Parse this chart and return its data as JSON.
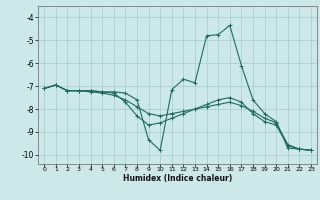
{
  "title": "",
  "xlabel": "Humidex (Indice chaleur)",
  "ylabel": "",
  "bg_color": "#cce8e8",
  "grid_color": "#aad0d0",
  "line_color": "#1e6b60",
  "xlim": [
    -0.5,
    23.5
  ],
  "ylim": [
    -10.4,
    -3.5
  ],
  "yticks": [
    -10,
    -9,
    -8,
    -7,
    -6,
    -5,
    -4
  ],
  "xticks": [
    0,
    1,
    2,
    3,
    4,
    5,
    6,
    7,
    8,
    9,
    10,
    11,
    12,
    13,
    14,
    15,
    16,
    17,
    18,
    19,
    20,
    21,
    22,
    23
  ],
  "series": [
    {
      "x": [
        0,
        1,
        2,
        3,
        4,
        5,
        6,
        7,
        8,
        9,
        10,
        11,
        12,
        13,
        14,
        15,
        16,
        17,
        18,
        19,
        20,
        21,
        22,
        23
      ],
      "y": [
        -7.1,
        -6.95,
        -7.2,
        -7.2,
        -7.2,
        -7.25,
        -7.25,
        -7.3,
        -7.6,
        -9.35,
        -9.8,
        -7.15,
        -6.7,
        -6.85,
        -4.8,
        -4.75,
        -4.35,
        -6.1,
        -7.6,
        -8.2,
        -8.55,
        -9.7,
        -9.75,
        -9.8
      ]
    },
    {
      "x": [
        0,
        1,
        2,
        3,
        4,
        5,
        6,
        7,
        8,
        9,
        10,
        11,
        12,
        13,
        14,
        15,
        16,
        17,
        18,
        19,
        20,
        21,
        22,
        23
      ],
      "y": [
        -7.1,
        -6.95,
        -7.2,
        -7.2,
        -7.2,
        -7.25,
        -7.3,
        -7.7,
        -8.3,
        -8.7,
        -8.6,
        -8.4,
        -8.2,
        -8.0,
        -7.8,
        -7.6,
        -7.5,
        -7.7,
        -8.2,
        -8.55,
        -8.7,
        -9.6,
        -9.75,
        -9.8
      ]
    },
    {
      "x": [
        0,
        1,
        2,
        3,
        4,
        5,
        6,
        7,
        8,
        9,
        10,
        11,
        12,
        13,
        14,
        15,
        16,
        17,
        18,
        19,
        20,
        21,
        22,
        23
      ],
      "y": [
        -7.1,
        -6.95,
        -7.2,
        -7.2,
        -7.25,
        -7.3,
        -7.4,
        -7.6,
        -7.9,
        -8.2,
        -8.3,
        -8.2,
        -8.1,
        -8.0,
        -7.9,
        -7.8,
        -7.7,
        -7.85,
        -8.1,
        -8.4,
        -8.6,
        -9.55,
        -9.75,
        -9.8
      ]
    }
  ]
}
